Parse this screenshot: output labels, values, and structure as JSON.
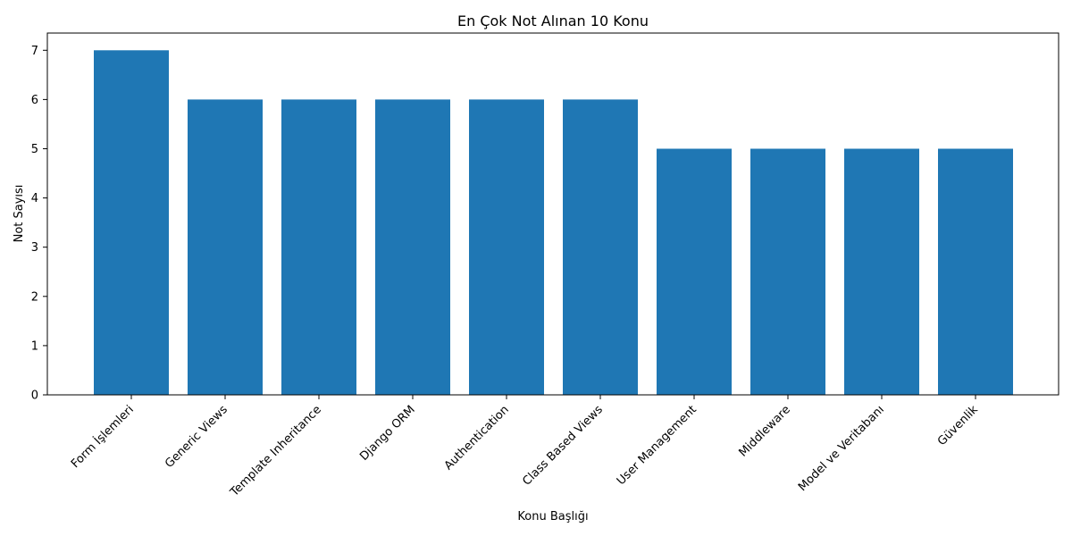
{
  "chart_data": {
    "type": "bar",
    "title": "En Çok Not Alınan 10 Konu",
    "xlabel": "Konu Başlığı",
    "ylabel": "Not Sayısı",
    "categories": [
      "Form İşlemleri",
      "Generic Views",
      "Template Inheritance",
      "Django ORM",
      "Authentication",
      "Class Based Views",
      "User Management",
      "Middleware",
      "Model ve Veritabanı",
      "Güvenlik"
    ],
    "values": [
      7,
      6,
      6,
      6,
      6,
      6,
      5,
      5,
      5,
      5
    ],
    "ylim": [
      0,
      7.35
    ],
    "yticks": [
      0,
      1,
      2,
      3,
      4,
      5,
      6,
      7
    ],
    "bar_color": "#1f77b4",
    "grid": false,
    "legend": "none"
  }
}
